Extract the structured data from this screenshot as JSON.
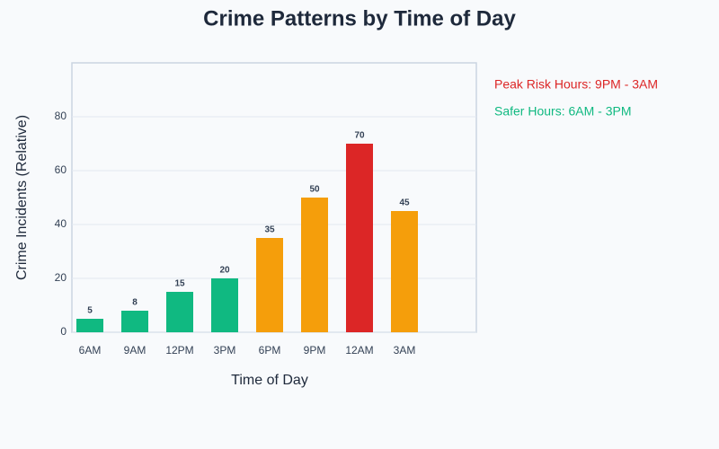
{
  "chart_data": {
    "type": "bar",
    "title": "Crime Patterns by Time of Day",
    "x_label": "Time of Day",
    "y_label": "Crime Incidents (Relative)",
    "categories": [
      "6AM",
      "9AM",
      "12PM",
      "3PM",
      "6PM",
      "9PM",
      "12AM",
      "3AM"
    ],
    "values": [
      5,
      8,
      15,
      20,
      35,
      50,
      70,
      45
    ],
    "colors": [
      "#10b981",
      "#10b981",
      "#10b981",
      "#10b981",
      "#f59e0b",
      "#f59e0b",
      "#dc2626",
      "#f59e0b"
    ],
    "ylim": [
      0,
      100
    ],
    "yticks": [
      0,
      20,
      40,
      60,
      80
    ],
    "grid": true,
    "annotations": [
      {
        "text": "Peak Risk Hours: 9PM - 3AM",
        "color": "#dc2626"
      },
      {
        "text": "Safer Hours: 6AM - 3PM",
        "color": "#10b981"
      }
    ]
  }
}
